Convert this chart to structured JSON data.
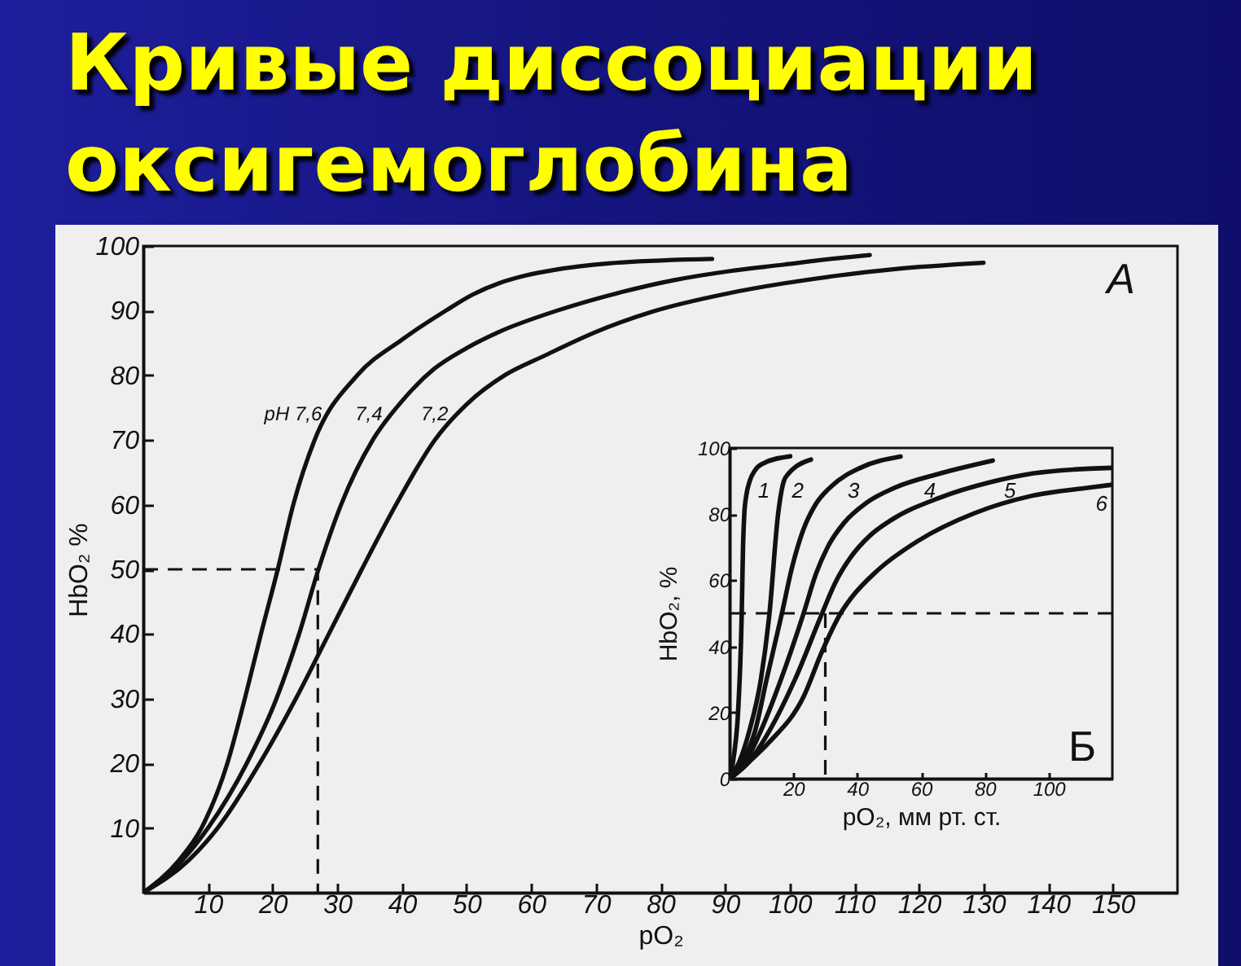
{
  "chart_data": [
    {
      "type": "line",
      "title": "Кривые диссоциации оксигемоглобина",
      "xlabel": "pO₂",
      "ylabel": "HbO₂ %",
      "xlim": [
        0,
        160
      ],
      "ylim": [
        0,
        100
      ],
      "xticks": [
        10,
        20,
        30,
        40,
        50,
        60,
        70,
        80,
        90,
        100,
        110,
        120,
        130,
        140,
        150
      ],
      "yticks": [
        10,
        20,
        30,
        40,
        50,
        60,
        70,
        80,
        90,
        100
      ],
      "series": [
        {
          "name": "pH 7,6",
          "color": "#111111",
          "x": [
            0,
            5.5,
            9,
            13,
            15.7,
            18.2,
            20.8,
            23.2,
            26.5,
            33.1,
            40,
            46.8,
            51,
            55.2,
            59,
            63.6,
            72,
            88
          ],
          "values": [
            0,
            5,
            10,
            20,
            30,
            40,
            50,
            60,
            70,
            80,
            85.5,
            90,
            92.5,
            94.3,
            95.4,
            96.3,
            97.3,
            98
          ]
        },
        {
          "name": "7,4",
          "color": "#111111",
          "x": [
            0,
            6,
            10,
            16,
            20.6,
            24.1,
            27.1,
            30.6,
            35.5,
            40,
            45,
            50,
            55,
            64,
            73.7,
            82,
            90.6,
            99,
            107.3,
            112.4
          ],
          "values": [
            0,
            5,
            10,
            20,
            30,
            40,
            50,
            60,
            70,
            76,
            81,
            84.2,
            86.7,
            90,
            92.8,
            94.7,
            96.1,
            97.1,
            98.1,
            98.6
          ]
        },
        {
          "name": "7,2",
          "color": "#111111",
          "x": [
            0,
            7,
            11.5,
            18,
            23.6,
            28.7,
            33.8,
            39.1,
            45.1,
            50,
            55.9,
            62,
            70,
            78.6,
            90.6,
            99,
            107.3,
            116,
            130
          ],
          "values": [
            0,
            5,
            10,
            20,
            30,
            40,
            50,
            60,
            70,
            75.5,
            80,
            83,
            86.7,
            89.8,
            92.7,
            94.2,
            95.4,
            96.4,
            97.4
          ]
        },
        {
          "color": "#111111",
          "x": [
            0,
            27,
            27
          ],
          "values": [
            50,
            50,
            0
          ],
          "line_style": "dashed"
        }
      ],
      "annotations": [
        "A"
      ]
    },
    {
      "type": "line",
      "xlabel": "pO₂, мм рт. ст.",
      "ylabel": "HbO₂, %",
      "xlim": [
        0,
        120
      ],
      "ylim": [
        0,
        100
      ],
      "xticks": [
        20,
        40,
        60,
        80,
        100
      ],
      "yticks": [
        0,
        20,
        40,
        60,
        80,
        100
      ],
      "series": [
        {
          "name": "1",
          "color": "#111111",
          "x": [
            0,
            1.5,
            2.7,
            3.8,
            4.2,
            4.6,
            5.2,
            6.3,
            8,
            10.7,
            19
          ],
          "values": [
            0,
            8,
            21,
            50,
            70,
            80,
            85.5,
            90,
            93.3,
            95.4,
            97.5
          ]
        },
        {
          "name": "2",
          "color": "#111111",
          "x": [
            0,
            3,
            6.2,
            9.8,
            12.5,
            15.2,
            17,
            18.5,
            21,
            25.5
          ],
          "values": [
            0,
            5,
            14.5,
            30,
            50,
            80,
            90,
            92.3,
            94.5,
            96.5
          ]
        },
        {
          "name": "3",
          "color": "#111111",
          "x": [
            0,
            4,
            8,
            11.6,
            16.4,
            19.6,
            23,
            27,
            32,
            41,
            53.6
          ],
          "values": [
            0,
            5,
            14.5,
            30,
            50,
            64,
            75,
            83,
            88.5,
            94,
            97.4
          ]
        },
        {
          "name": "4",
          "color": "#111111",
          "x": [
            0,
            5,
            9.8,
            16.1,
            23.2,
            27.1,
            31,
            36,
            43,
            51.8,
            66,
            82.5
          ],
          "values": [
            0,
            5,
            14.5,
            30,
            50,
            62,
            70.5,
            77.5,
            83.5,
            88,
            92.3,
            96.2
          ]
        },
        {
          "name": "5",
          "color": "#111111",
          "x": [
            0,
            6,
            12.5,
            20.5,
            29,
            33,
            38,
            44,
            50,
            66,
            82,
            95,
            108,
            120
          ],
          "values": [
            0,
            5,
            14.5,
            30,
            50,
            59,
            67,
            73.5,
            77.8,
            85,
            89.7,
            92.3,
            93.5,
            94
          ]
        },
        {
          "name": "6",
          "color": "#111111",
          "x": [
            0,
            6,
            12.5,
            23.2,
            29,
            34.8,
            38,
            46.4,
            58.9,
            76.8,
            94.6,
            112.5,
            120
          ],
          "values": [
            0,
            5,
            11.1,
            24.8,
            38.5,
            50,
            54.5,
            63,
            71.8,
            80.3,
            85.5,
            88,
            88.9
          ]
        },
        {
          "color": "#111111",
          "x": [
            30,
            30
          ],
          "values": [
            50,
            0
          ],
          "line_style": "dashed"
        }
      ],
      "ref_lines": [
        {
          "axis": "y",
          "value": 50,
          "line_style": "dashed",
          "color": "#111111"
        }
      ],
      "annotations": [
        "Б"
      ]
    }
  ]
}
